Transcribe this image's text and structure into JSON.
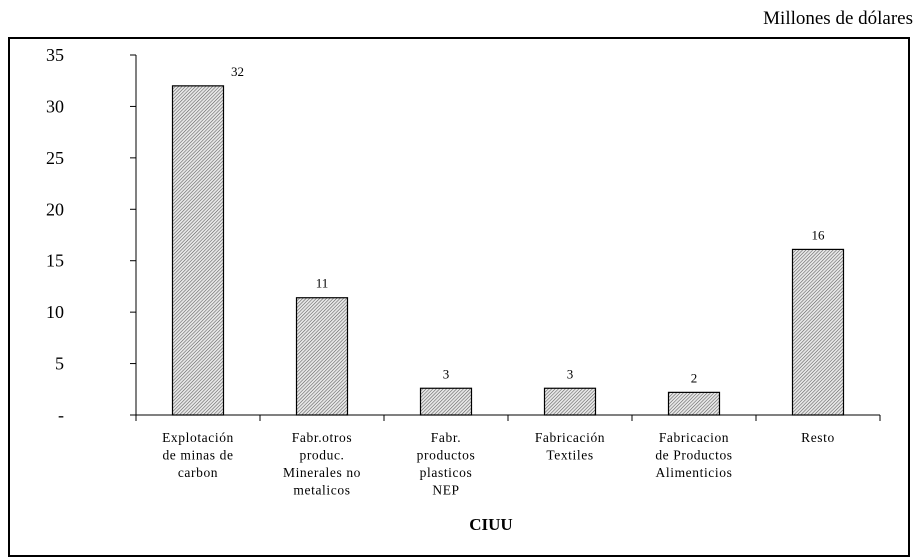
{
  "unit_label": "Millones de dólares",
  "chart_data": {
    "type": "bar",
    "title": "",
    "xlabel": "CIUU",
    "ylabel": "",
    "ylim": [
      0,
      35
    ],
    "yticks": [
      0,
      5,
      10,
      15,
      20,
      25,
      30,
      35
    ],
    "ytick_labels": [
      "-",
      "5",
      "10",
      "15",
      "20",
      "25",
      "30",
      "35"
    ],
    "grid": false,
    "categories": [
      [
        "Explotación",
        "de minas de",
        "carbon"
      ],
      [
        "Fabr.otros",
        "produc.",
        "Minerales no",
        "metalicos"
      ],
      [
        "Fabr.",
        "productos",
        "plasticos",
        "NEP"
      ],
      [
        "Fabricación",
        "Textiles"
      ],
      [
        "Fabricacion",
        "de Productos",
        "Alimenticios"
      ],
      [
        "Resto"
      ]
    ],
    "values": [
      32,
      11.4,
      2.6,
      2.6,
      2.2,
      16.1
    ],
    "data_labels": [
      "32",
      "11",
      "3",
      "3",
      "2",
      "16"
    ],
    "bar_fill": "hatched-grey"
  }
}
